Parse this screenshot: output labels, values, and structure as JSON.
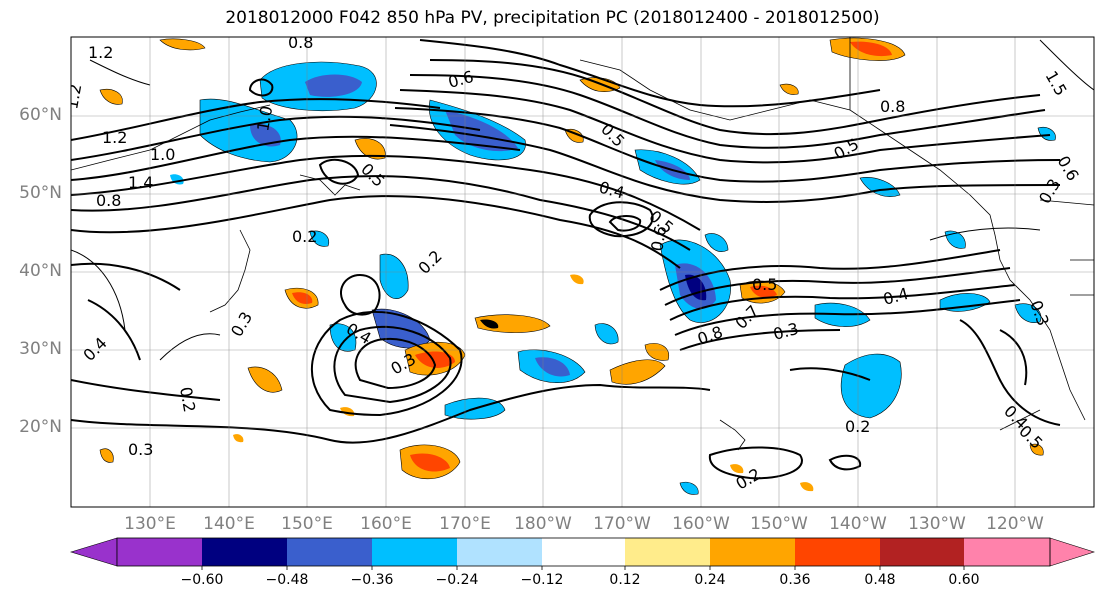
{
  "title": "2018012000 F042 850 hPa PV, precipitation PC (2018012400 - 2018012500)",
  "latitude_labels": [
    "60°N",
    "50°N",
    "40°N",
    "30°N",
    "20°N"
  ],
  "longitude_labels": [
    "130°E",
    "140°E",
    "150°E",
    "160°E",
    "170°E",
    "180°W",
    "170°W",
    "160°W",
    "150°W",
    "140°W",
    "130°W",
    "120°W"
  ],
  "contour_labels": [
    "1.2",
    "1.2",
    "1.2",
    "1.0",
    "1.4",
    "0.8",
    "0.2",
    "0.2",
    "0.3",
    "0.4",
    "0.3",
    "0.4",
    "0.2",
    "0.3",
    "0.4",
    "0.5",
    "0.6",
    "0.5",
    "0.6",
    "0.5",
    "0.5",
    "0.8",
    "0.7",
    "0.8",
    "0.3",
    "0.4",
    "0.5",
    "0.2",
    "0.2",
    "1.0",
    "0.8",
    "1.5",
    "0.6",
    "0.3",
    "0.4",
    "0.5",
    "0.3"
  ],
  "colorbar": {
    "colors": [
      "#9932cc",
      "#000080",
      "#3a5fcd",
      "#00bfff",
      "#b0e2ff",
      "#ffffff",
      "#ffec8b",
      "#ffa500",
      "#ff4500",
      "#b22222",
      "#ff82ab"
    ],
    "tick_labels": [
      "−0.60",
      "−0.48",
      "−0.36",
      "−0.24",
      "−0.12",
      "0.12",
      "0.24",
      "0.36",
      "0.48",
      "0.60"
    ]
  }
}
